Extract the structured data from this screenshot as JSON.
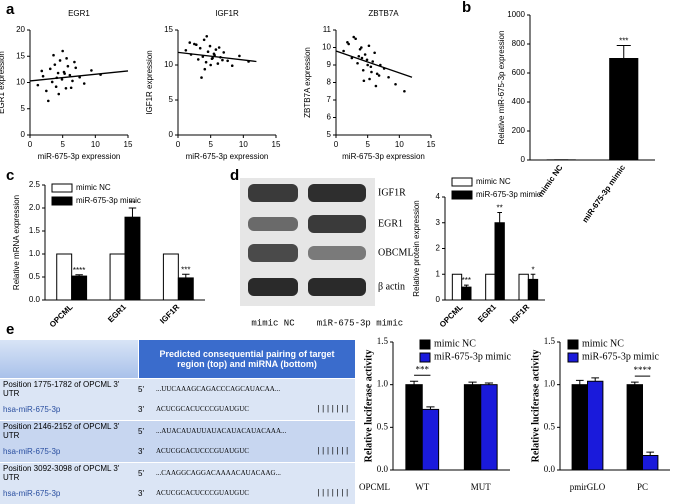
{
  "panel_labels": [
    "a",
    "b",
    "c",
    "d",
    "e"
  ],
  "chart_data": [
    {
      "type": "scatter",
      "title": "EGR1",
      "xlabel": "miR-675-3p expression",
      "ylabel": "EGR1 expression",
      "x": [
        1.2,
        2.0,
        2.5,
        3.1,
        3.4,
        3.8,
        4.0,
        4.3,
        4.6,
        4.9,
        5.2,
        5.5,
        5.8,
        6.1,
        6.5,
        7.0,
        7.6,
        8.3,
        9.4,
        10.8,
        2.8,
        3.6,
        4.4,
        5.0,
        5.6,
        6.3,
        1.8,
        4.1,
        5.3,
        6.8
      ],
      "y": [
        9.5,
        11.2,
        8.4,
        12.6,
        10.1,
        13.4,
        9.2,
        11.8,
        14.2,
        10.6,
        12.0,
        8.9,
        13.1,
        11.4,
        10.3,
        12.8,
        11.0,
        9.8,
        12.3,
        11.5,
        6.5,
        15.2,
        7.8,
        16.0,
        14.6,
        9.0,
        12.2,
        10.9,
        11.7,
        13.9
      ],
      "trend": {
        "x": [
          0,
          15
        ],
        "y": [
          10.3,
          12.2
        ]
      },
      "color": "#000000",
      "xlim": [
        0,
        15
      ],
      "xticks": [
        0,
        5,
        10,
        15
      ],
      "ylim": [
        0,
        20
      ],
      "yticks": [
        0,
        5,
        10,
        15,
        20
      ]
    },
    {
      "type": "scatter",
      "title": "IGF1R",
      "xlabel": "miR-675-3p expression",
      "ylabel": "IGF1R expression",
      "x": [
        1.2,
        2.0,
        2.5,
        3.1,
        3.4,
        3.8,
        4.0,
        4.3,
        4.6,
        4.9,
        5.2,
        5.5,
        5.8,
        6.1,
        6.5,
        7.0,
        7.6,
        8.3,
        9.4,
        10.8,
        2.8,
        3.6,
        4.4,
        5.0,
        5.6,
        6.3,
        1.8,
        4.1,
        5.3,
        6.8
      ],
      "y": [
        12.1,
        11.5,
        13.0,
        10.8,
        12.4,
        11.2,
        13.6,
        10.4,
        11.9,
        12.7,
        10.9,
        11.6,
        12.2,
        10.2,
        11.1,
        11.8,
        10.6,
        9.9,
        11.3,
        10.5,
        12.9,
        8.2,
        14.1,
        10.0,
        11.4,
        12.5,
        13.2,
        9.4,
        11.0,
        10.7
      ],
      "trend": {
        "x": [
          0,
          12
        ],
        "y": [
          11.8,
          10.5
        ]
      },
      "color": "#000000",
      "xlim": [
        0,
        15
      ],
      "xticks": [
        0,
        5,
        10,
        15
      ],
      "ylim": [
        0,
        15
      ],
      "yticks": [
        0,
        5,
        10,
        15
      ]
    },
    {
      "type": "scatter",
      "title": "ZBTB7A",
      "xlabel": "miR-675-3p expression",
      "ylabel": "ZBTB7A expression",
      "x": [
        1.2,
        2.0,
        2.5,
        3.1,
        3.4,
        3.8,
        4.0,
        4.3,
        4.6,
        4.9,
        5.2,
        5.5,
        5.8,
        6.1,
        6.5,
        7.0,
        7.6,
        8.3,
        9.4,
        10.8,
        2.8,
        3.6,
        4.4,
        5.0,
        5.6,
        6.3,
        1.8,
        4.1,
        5.3,
        6.8
      ],
      "y": [
        9.8,
        10.2,
        9.4,
        10.5,
        9.1,
        9.9,
        10.0,
        8.7,
        9.6,
        9.3,
        10.1,
        8.9,
        9.2,
        9.7,
        8.5,
        9.0,
        8.8,
        8.3,
        7.9,
        7.5,
        10.6,
        9.5,
        8.1,
        9.0,
        8.6,
        7.8,
        10.3,
        9.4,
        8.2,
        8.4
      ],
      "trend": {
        "x": [
          0,
          12
        ],
        "y": [
          9.8,
          8.3
        ]
      },
      "color": "#000000",
      "xlim": [
        0,
        15
      ],
      "xticks": [
        0,
        5,
        10,
        15
      ],
      "ylim": [
        5,
        11
      ],
      "yticks": [
        5,
        6,
        7,
        8,
        9,
        10,
        11
      ]
    },
    {
      "type": "bar",
      "ylabel": "Relative miR-675-3p expression",
      "categories": [
        "mimic NC",
        "miR-675-3p mimic"
      ],
      "values": [
        1,
        700
      ],
      "errors": [
        0,
        90
      ],
      "annotations": [
        null,
        "***"
      ],
      "color": "#000000",
      "ylim": [
        0,
        1000
      ],
      "yticks": [
        0,
        200,
        400,
        600,
        800,
        1000
      ]
    },
    {
      "type": "bar",
      "ylabel": "Relative mRNA expression",
      "categories": [
        "OPCML",
        "EGR1",
        "IGF1R"
      ],
      "series": [
        {
          "name": "mimic NC",
          "color": "#ffffff",
          "values": [
            1,
            1,
            1
          ]
        },
        {
          "name": "miR-675-3p  mimic",
          "color": "#000000",
          "values": [
            0.52,
            1.8,
            0.48
          ],
          "errors": [
            0.03,
            0.2,
            0.08
          ],
          "annotations": [
            "****",
            "**",
            "***"
          ]
        }
      ],
      "ylim": [
        0,
        2.5
      ],
      "yticks": [
        {
          "value": 0,
          "label": "0.0"
        },
        0.5,
        {
          "value": 1,
          "label": "1.0"
        },
        1.5,
        {
          "value": 2,
          "label": "2.0"
        },
        2.5
      ],
      "legend": "upper left"
    },
    {
      "type": "bar",
      "ylabel": "Relative protein expression",
      "categories": [
        "OPCML",
        "EGR1",
        "IGF1R"
      ],
      "series": [
        {
          "name": "mimic NC",
          "color": "#ffffff",
          "values": [
            1,
            1,
            1
          ]
        },
        {
          "name": "miR-675-3p mimic",
          "color": "#000000",
          "values": [
            0.5,
            3.0,
            0.8
          ],
          "errors": [
            0.08,
            0.4,
            0.2
          ],
          "annotations": [
            "***",
            "**",
            "*"
          ]
        }
      ],
      "ylim": [
        0,
        4
      ],
      "yticks": [
        0,
        1,
        2,
        3,
        4
      ],
      "legend": "upper left"
    },
    {
      "type": "bar",
      "ylabel": "Relative luciferase activity",
      "group_label": "OPCML",
      "categories": [
        "WT",
        "MUT"
      ],
      "series": [
        {
          "name": "mimic NC",
          "color": "#000000",
          "values": [
            1.0,
            1.0
          ],
          "errors": [
            0.04,
            0.03
          ]
        },
        {
          "name": "miR-675-3p mimic",
          "color": "#1a1adb",
          "values": [
            0.71,
            1.0
          ],
          "errors": [
            0.03,
            0.02
          ],
          "annotations": [
            "***",
            null
          ]
        }
      ],
      "ylim": [
        0,
        1.5
      ],
      "yticks": [
        {
          "value": 0,
          "label": "0.0"
        },
        0.5,
        {
          "value": 1,
          "label": "1.0"
        },
        1.5
      ],
      "legend": "upper right",
      "bracket": true
    },
    {
      "type": "bar",
      "ylabel": "Relative luciferase activity",
      "categories": [
        "pmirGLO",
        "PC"
      ],
      "series": [
        {
          "name": "mimic NC",
          "color": "#000000",
          "values": [
            1.0,
            1.0
          ],
          "errors": [
            0.05,
            0.03
          ]
        },
        {
          "name": "miR-675-3p mimic",
          "color": "#1a1adb",
          "values": [
            1.04,
            0.17
          ],
          "errors": [
            0.04,
            0.04
          ],
          "annotations": [
            null,
            "****"
          ]
        }
      ],
      "ylim": [
        0,
        1.5
      ],
      "yticks": [
        {
          "value": 0,
          "label": "0.0"
        },
        0.5,
        {
          "value": 1,
          "label": "1.0"
        },
        1.5
      ],
      "legend": "upper right",
      "bracket": true
    }
  ],
  "blot": {
    "bands": [
      "IGF1R",
      "EGR1",
      "OBCML",
      "β actin"
    ],
    "lanes": [
      "mimic NC",
      "miR-675-3p mimic"
    ]
  },
  "table": {
    "header": "Predicted consequential pairing of target region (top) and miRNA (bottom)",
    "rows": [
      {
        "target": "Position 1775-1782 of OPCML 3' UTR",
        "target_end": "5'",
        "target_seq": "...UUCAAAGCAGACCCAGCAUACAA...",
        "mirna": "hsa-miR-675-3p",
        "mirna_end": "3'",
        "mirna_seq": "ACUCGCACUCCCGUAUGUC",
        "pairing": "|||||||"
      },
      {
        "target": "Position 2146-2152 of OPCML 3' UTR",
        "target_end": "5'",
        "target_seq": "...AUACAUAUUAUACAUACAUACAAA...",
        "mirna": "hsa-miR-675-3p",
        "mirna_end": "3'",
        "mirna_seq": "ACUCGCACUCCCGUAUGUC",
        "pairing": "|||||||"
      },
      {
        "target": "Position 3092-3098 of OPCML 3' UTR",
        "target_end": "5'",
        "target_seq": "...CAAGGCAGGACAAAACAUACAAG...",
        "mirna": "hsa-miR-675-3p",
        "mirna_end": "3'",
        "mirna_seq": "ACUCGCACUCCCGUAUGUC",
        "pairing": "|||||||"
      }
    ]
  }
}
